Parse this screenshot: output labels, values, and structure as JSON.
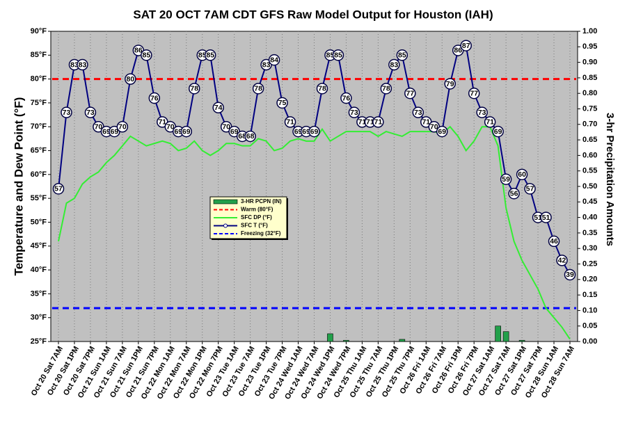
{
  "chart_data": {
    "type": "line",
    "title": "SAT 20 OCT 7AM CDT GFS Raw Model Output for Houston (IAH)",
    "y_label": "Temperature and Dew Point (°F)",
    "y2_label": "3-hr Precipitation Amounts",
    "categories": [
      "Oct 20 Sat 7AM",
      null,
      "Oct 20 Sat 1PM",
      null,
      "Oct 20 Sat 7PM",
      null,
      "Oct 21 Sun 1AM",
      null,
      "Oct 21 Sun 7AM",
      null,
      "Oct 21 Sun 1PM",
      null,
      "Oct 21 Sun 7PM",
      null,
      "Oct 22 Mon 1AM",
      null,
      "Oct 22 Mon 7AM",
      null,
      "Oct 22 Mon 1PM",
      null,
      "Oct 22 Mon 7PM",
      null,
      "Oct 23 Tue 1AM",
      null,
      "Oct 23 Tue 7AM",
      null,
      "Oct 23 Tue 1PM",
      null,
      "Oct 23 Tue 7PM",
      null,
      "Oct 24 Wed 1AM",
      null,
      "Oct 24 Wed 7AM",
      null,
      "Oct 24 Wed 1PM",
      null,
      "Oct 24 Wed 7PM",
      null,
      "Oct 25 Thu 1AM",
      null,
      "Oct 25 Thu 7AM",
      null,
      "Oct 25 Thu 1PM",
      null,
      "Oct 25 Thu 7PM",
      null,
      "Oct 26 Fri 1AM",
      null,
      "Oct 26 Fri 7AM",
      null,
      "Oct 26 Fri 1PM",
      null,
      "Oct 26 Fri 7PM",
      null,
      "Oct 27 Sat 1AM",
      null,
      "Oct 27 Sat 7AM",
      null,
      "Oct 27 Sat 1PM",
      null,
      "Oct 27 Sat 7PM",
      null,
      "Oct 28 Sun 1AM",
      null,
      "Oct 28 Sun 7AM"
    ],
    "series": [
      {
        "name": "3-HR PCPN (IN)",
        "type": "bar",
        "axis": "y2",
        "color": "#22a04a",
        "values": [
          0,
          0,
          0,
          0,
          0,
          0,
          0,
          0,
          0,
          0,
          0,
          0,
          0,
          0,
          0,
          0,
          0,
          0,
          0,
          0,
          0,
          0,
          0,
          0,
          0,
          0,
          0,
          0,
          0,
          0,
          0,
          0,
          0,
          0,
          0.025,
          0,
          0.004,
          0,
          0,
          0,
          0,
          0,
          0,
          0.007,
          0,
          0,
          0,
          0,
          0,
          0,
          0,
          0,
          0,
          0,
          0,
          0.05,
          0.032,
          0,
          0.004,
          0,
          0,
          0,
          0,
          0,
          0
        ]
      },
      {
        "name": "SFC DP (°F)",
        "type": "line",
        "color": "#33ee33",
        "values": [
          46,
          54,
          55,
          58,
          59.5,
          60.5,
          62.5,
          64,
          66,
          68,
          67,
          66,
          66.5,
          67,
          66.5,
          65,
          65.5,
          67,
          65,
          64,
          65,
          66.5,
          66.5,
          66,
          66,
          67.5,
          67,
          65,
          65.5,
          67,
          67.5,
          67,
          67,
          69.5,
          67,
          68,
          69,
          69,
          69,
          69,
          68,
          69,
          68.5,
          68,
          69,
          69,
          69,
          69,
          68.5,
          70,
          68,
          65,
          67,
          70,
          70,
          66,
          53,
          46,
          42,
          39,
          36,
          32,
          30,
          28,
          25.5
        ]
      },
      {
        "name": "SFC T (°F)",
        "type": "line",
        "color": "#000080",
        "markers": true,
        "values": [
          57,
          73,
          83,
          83,
          73,
          70,
          69,
          69,
          70,
          80,
          86,
          85,
          76,
          71,
          70,
          69,
          69,
          78,
          85,
          85,
          74,
          70,
          69,
          68,
          68,
          78,
          83,
          84,
          75,
          71,
          69,
          69,
          69,
          78,
          85,
          85,
          76,
          73,
          71,
          71,
          71,
          78,
          83,
          85,
          77,
          73,
          71,
          70,
          69,
          79,
          86,
          87,
          77,
          73,
          71,
          69,
          59,
          56,
          60,
          57,
          51,
          51,
          46,
          42,
          39
        ]
      }
    ],
    "reference_lines": [
      {
        "name": "Warm (80°F)",
        "value": 80,
        "color": "#ff0000"
      },
      {
        "name": "Freezing (32°F)",
        "value": 32,
        "color": "#0000ff"
      }
    ],
    "ylim": [
      25,
      90
    ],
    "yticks": [
      {
        "value": 25,
        "label": "25°F"
      },
      {
        "value": 30,
        "label": "30°F"
      },
      {
        "value": 35,
        "label": "35°F"
      },
      {
        "value": 40,
        "label": "40°F"
      },
      {
        "value": 45,
        "label": "45°F"
      },
      {
        "value": 50,
        "label": "50°F"
      },
      {
        "value": 55,
        "label": "55°F"
      },
      {
        "value": 60,
        "label": "60°F"
      },
      {
        "value": 65,
        "label": "65°F"
      },
      {
        "value": 70,
        "label": "70°F"
      },
      {
        "value": 75,
        "label": "75°F"
      },
      {
        "value": 80,
        "label": "80°F"
      },
      {
        "value": 85,
        "label": "85°F"
      },
      {
        "value": 90,
        "label": "90°F"
      }
    ],
    "y2lim": [
      0,
      1
    ],
    "y2ticks": [
      {
        "value": 0,
        "label": "0.00"
      },
      {
        "value": 0.05,
        "label": "0.05"
      },
      {
        "value": 0.1,
        "label": "0.10"
      },
      {
        "value": 0.15,
        "label": "0.15"
      },
      {
        "value": 0.2,
        "label": "0.20"
      },
      {
        "value": 0.25,
        "label": "0.25"
      },
      {
        "value": 0.3,
        "label": "0.30"
      },
      {
        "value": 0.35,
        "label": "0.35"
      },
      {
        "value": 0.4,
        "label": "0.40"
      },
      {
        "value": 0.45,
        "label": "0.45"
      },
      {
        "value": 0.5,
        "label": "0.50"
      },
      {
        "value": 0.55,
        "label": "0.55"
      },
      {
        "value": 0.6,
        "label": "0.60"
      },
      {
        "value": 0.65,
        "label": "0.65"
      },
      {
        "value": 0.7,
        "label": "0.70"
      },
      {
        "value": 0.75,
        "label": "0.75"
      },
      {
        "value": 0.8,
        "label": "0.80"
      },
      {
        "value": 0.85,
        "label": "0.85"
      },
      {
        "value": 0.9,
        "label": "0.90"
      },
      {
        "value": 0.95,
        "label": "0.95"
      },
      {
        "value": 1,
        "label": "1.00"
      }
    ],
    "grid": true,
    "legend": "center-left"
  }
}
